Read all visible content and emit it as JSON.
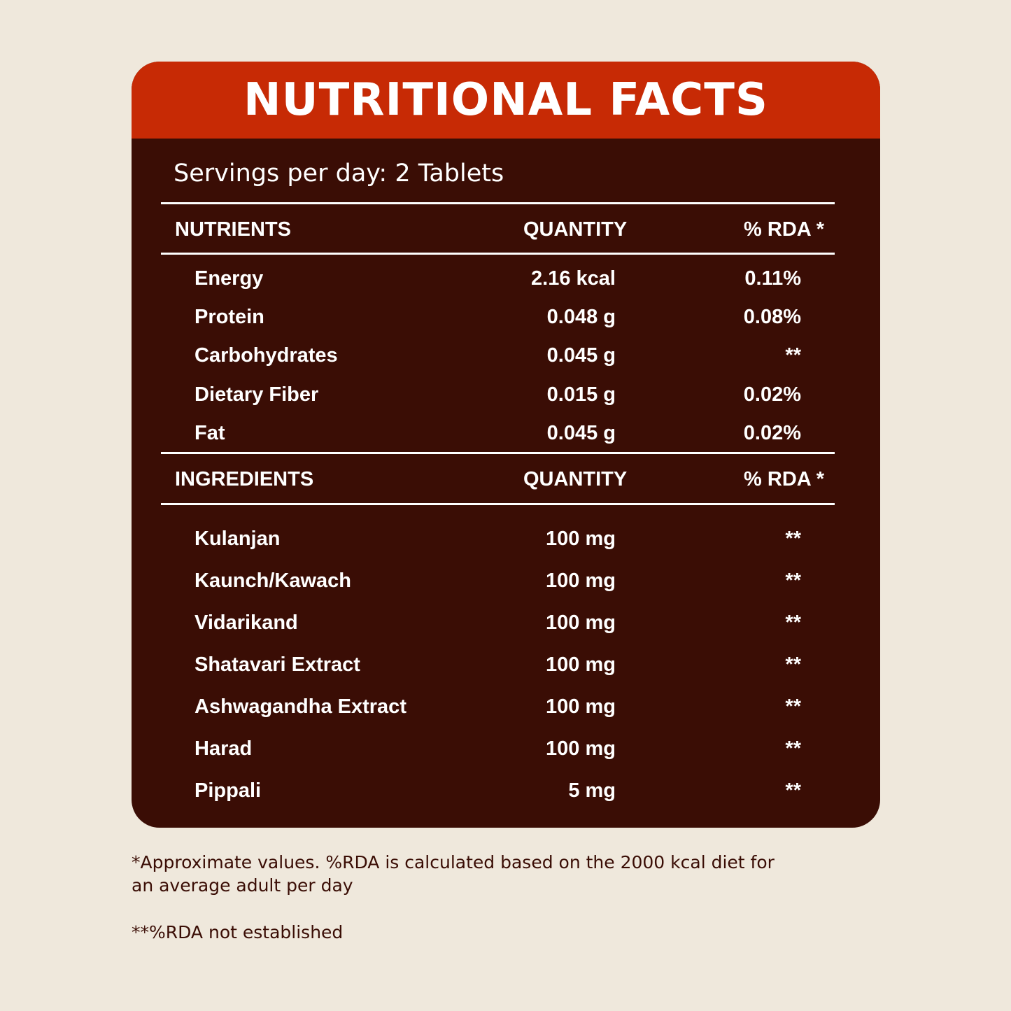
{
  "title": "NUTRITIONAL FACTS",
  "servings": "Servings per day: 2 Tablets",
  "nutrients": {
    "headers": {
      "name": "NUTRIENTS",
      "quantity": "QUANTITY",
      "rda": "% RDA *"
    },
    "rows": [
      {
        "name": "Energy",
        "quantity": "2.16 kcal",
        "rda": "0.11%"
      },
      {
        "name": "Protein",
        "quantity": "0.048 g",
        "rda": "0.08%"
      },
      {
        "name": "Carbohydrates",
        "quantity": "0.045 g",
        "rda": "**"
      },
      {
        "name": "Dietary Fiber",
        "quantity": "0.015 g",
        "rda": "0.02%"
      },
      {
        "name": "Fat",
        "quantity": "0.045 g",
        "rda": "0.02%"
      }
    ]
  },
  "ingredients": {
    "headers": {
      "name": "INGREDIENTS",
      "quantity": "QUANTITY",
      "rda": "% RDA *"
    },
    "rows": [
      {
        "name": "Kulanjan",
        "quantity": "100 mg",
        "rda": "**"
      },
      {
        "name": "Kaunch/Kawach",
        "quantity": "100 mg",
        "rda": "**"
      },
      {
        "name": "Vidarikand",
        "quantity": "100 mg",
        "rda": "**"
      },
      {
        "name": "Shatavari Extract",
        "quantity": "100 mg",
        "rda": "**"
      },
      {
        "name": "Ashwagandha Extract",
        "quantity": "100 mg",
        "rda": "**"
      },
      {
        "name": "Harad",
        "quantity": "100 mg",
        "rda": "**"
      },
      {
        "name": "Pippali",
        "quantity": "5 mg",
        "rda": "**"
      }
    ]
  },
  "footnotes": {
    "approx_line1": "*Approximate values. %RDA is calculated based on the 2000 kcal diet for",
    "approx_line2": "an average adult per day",
    "not_established": "**%RDA not established"
  },
  "colors": {
    "background": "#efe8dc",
    "header": "#c72a05",
    "panel": "#3a0d05",
    "text_on_panel": "#ffffff",
    "footnote_text": "#3a0d05"
  }
}
